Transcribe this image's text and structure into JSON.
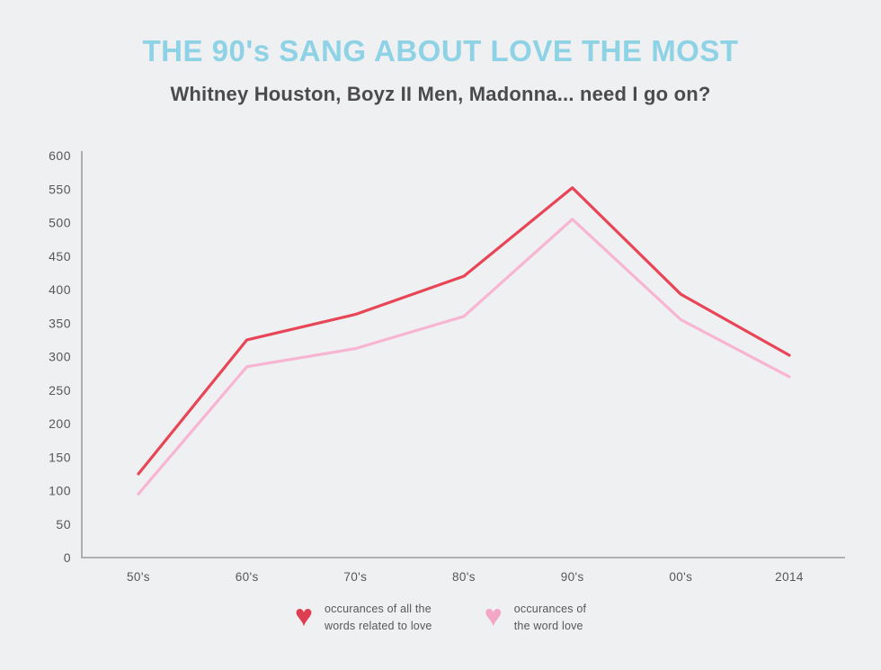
{
  "chart_data": {
    "type": "line",
    "title": "THE 90's SANG ABOUT LOVE THE MOST",
    "subtitle": "Whitney Houston, Boyz II Men, Madonna... need I go on?",
    "categories": [
      "50's",
      "60's",
      "70's",
      "80's",
      "90's",
      "00's",
      "2014"
    ],
    "series": [
      {
        "name": "occurances of all the\nwords related to love",
        "values": [
          125,
          325,
          363,
          420,
          552,
          393,
          302
        ],
        "color": "#e84657",
        "heart_color": "#de3f50"
      },
      {
        "name": "occurances of\nthe word love",
        "values": [
          95,
          285,
          312,
          360,
          505,
          355,
          270
        ],
        "color": "#f7b5d2",
        "heart_color": "#f3a6c6"
      }
    ],
    "xlabel": "",
    "ylabel": "",
    "ylim": [
      0,
      600
    ],
    "ytick_step": 50,
    "grid": false,
    "legend_position": "bottom",
    "colors": {
      "background": "#eff0f2",
      "title": "#8ed2e6",
      "subtitle": "#4b4b4d",
      "axis": "#9b9d9f",
      "tick_label": "#565759"
    }
  }
}
